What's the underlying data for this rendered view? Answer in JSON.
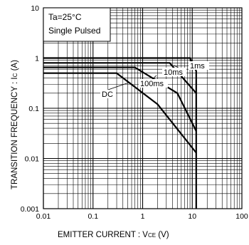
{
  "chart_data": {
    "type": "line",
    "conditions": [
      "Ta=25°C",
      "Single Pulsed"
    ],
    "xlabel": "EMITTER  CURRENT : V",
    "xlabel_sub": "CE",
    "xlabel_unit": " (V)",
    "ylabel": "TRANSITION FREQUENCY : I",
    "ylabel_sub": "C",
    "ylabel_unit": " (A)",
    "xscale": "log",
    "yscale": "log",
    "xlim": [
      0.01,
      100
    ],
    "ylim": [
      0.001,
      10
    ],
    "grid": true,
    "x_tick_labels": [
      "0.01",
      "0.1",
      "1",
      "10",
      "100"
    ],
    "y_tick_labels": [
      "0.001",
      "0.01",
      "0.1",
      "1",
      "10"
    ],
    "series": [
      {
        "name": "1ms",
        "points": [
          [
            0.01,
            1.0
          ],
          [
            9.0,
            1.0
          ],
          [
            12,
            0.55
          ],
          [
            12,
            0.001
          ]
        ]
      },
      {
        "name": "10ms",
        "points": [
          [
            0.01,
            0.8
          ],
          [
            3.5,
            0.8
          ],
          [
            12,
            0.2
          ]
        ]
      },
      {
        "name": "100ms",
        "points": [
          [
            0.01,
            0.65
          ],
          [
            0.7,
            0.65
          ],
          [
            5.0,
            0.2
          ],
          [
            12,
            0.035
          ]
        ]
      },
      {
        "name": "DC",
        "points": [
          [
            0.01,
            0.5
          ],
          [
            0.3,
            0.5
          ],
          [
            2.0,
            0.12
          ],
          [
            12,
            0.013
          ]
        ]
      }
    ],
    "series_labels": [
      "1ms",
      "10ms",
      "100ms",
      "DC"
    ]
  }
}
